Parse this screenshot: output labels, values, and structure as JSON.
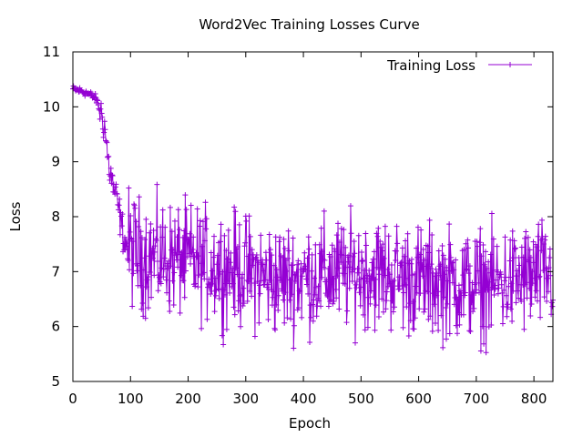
{
  "chart_data": {
    "type": "line",
    "title": "Word2Vec Training Losses Curve",
    "xlabel": "Epoch",
    "ylabel": "Loss",
    "xlim": [
      0,
      833
    ],
    "ylim": [
      5,
      11
    ],
    "xticks": [
      0,
      100,
      200,
      300,
      400,
      500,
      600,
      700,
      800
    ],
    "yticks": [
      5,
      6,
      7,
      8,
      9,
      10,
      11
    ],
    "grid": false,
    "legend_position": "top-right",
    "series": [
      {
        "name": "Training Loss",
        "color": "#9400d3",
        "marker": "plus",
        "keypoints": [
          [
            0,
            10.32
          ],
          [
            10,
            10.3
          ],
          [
            20,
            10.27
          ],
          [
            30,
            10.22
          ],
          [
            40,
            10.15
          ],
          [
            45,
            10.02
          ],
          [
            50,
            9.85
          ],
          [
            55,
            9.65
          ],
          [
            58,
            9.35
          ],
          [
            62,
            8.95
          ],
          [
            66,
            8.75
          ],
          [
            70,
            8.55
          ],
          [
            75,
            8.35
          ],
          [
            80,
            8.1
          ],
          [
            85,
            7.8
          ],
          [
            90,
            7.55
          ],
          [
            100,
            7.4
          ],
          [
            120,
            7.3
          ],
          [
            150,
            7.25
          ],
          [
            200,
            7.2
          ],
          [
            250,
            7.1
          ],
          [
            300,
            7.0
          ],
          [
            350,
            6.85
          ],
          [
            400,
            6.9
          ],
          [
            450,
            6.95
          ],
          [
            500,
            7.0
          ],
          [
            550,
            6.95
          ],
          [
            600,
            6.85
          ],
          [
            650,
            6.8
          ],
          [
            700,
            6.75
          ],
          [
            750,
            6.8
          ],
          [
            800,
            6.9
          ],
          [
            833,
            6.95
          ]
        ],
        "noise_amplitude": 0.55,
        "points_count": 833
      }
    ]
  }
}
